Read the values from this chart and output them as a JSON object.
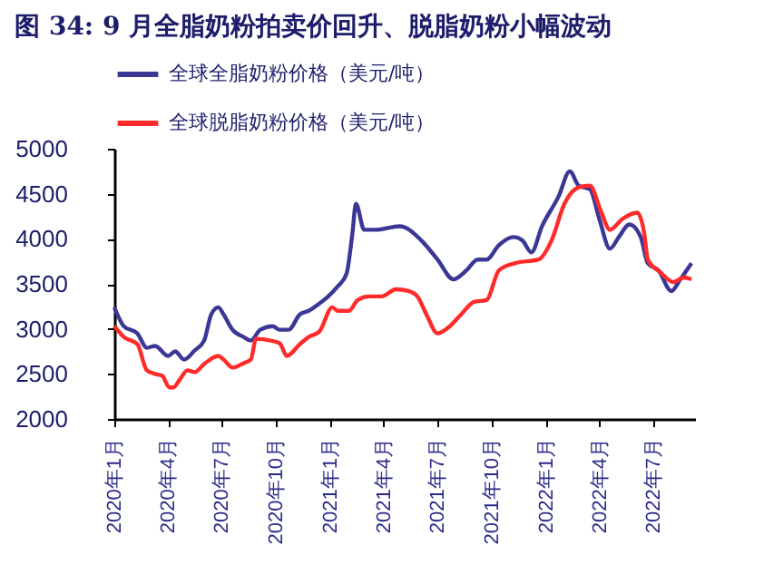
{
  "chart_data": {
    "type": "line",
    "title": "图 34: 9 月全脂奶粉拍卖价回升、脱脂奶粉小幅波动",
    "series": [
      {
        "name": "全球全脂奶粉价格（美元/吨）",
        "color": "#3b3796",
        "x": [
          "2020-01-01",
          "2020-01-17",
          "2020-02-09",
          "2020-02-25",
          "2020-03-10",
          "2020-04-01",
          "2020-04-13",
          "2020-04-28",
          "2020-05-16",
          "2020-06-01",
          "2020-06-13",
          "2020-06-25",
          "2020-07-04",
          "2020-07-19",
          "2020-08-07",
          "2020-08-19",
          "2020-09-04",
          "2020-09-25",
          "2020-10-07",
          "2020-10-22",
          "2020-11-10",
          "2020-11-25",
          "2020-12-13",
          "2020-12-28",
          "2021-01-13",
          "2021-01-28",
          "2021-02-07",
          "2021-02-13",
          "2021-02-27",
          "2021-03-19",
          "2021-04-28",
          "2021-06-04",
          "2021-07-01",
          "2021-07-28",
          "2021-08-19",
          "2021-09-07",
          "2021-09-22",
          "2021-10-13",
          "2021-11-07",
          "2021-11-22",
          "2021-12-07",
          "2021-12-25",
          "2022-01-22",
          "2022-02-10",
          "2022-02-25",
          "2022-03-16",
          "2022-04-01",
          "2022-04-19",
          "2022-05-04",
          "2022-05-22",
          "2022-06-10",
          "2022-06-22",
          "2022-07-10",
          "2022-08-01",
          "2022-08-16",
          "2022-09-04"
        ],
        "values": [
          3240,
          3030,
          2950,
          2790,
          2810,
          2700,
          2750,
          2660,
          2760,
          2870,
          3160,
          3240,
          3160,
          2990,
          2910,
          2870,
          2990,
          3030,
          2990,
          2990,
          3160,
          3200,
          3280,
          3360,
          3470,
          3610,
          4060,
          4390,
          4100,
          4100,
          4140,
          3980,
          3770,
          3550,
          3650,
          3770,
          3770,
          3930,
          4020,
          3980,
          3850,
          4140,
          4470,
          4750,
          4590,
          4550,
          4220,
          3890,
          4020,
          4160,
          4020,
          3730,
          3650,
          3420,
          3550,
          3730
        ]
      },
      {
        "name": "全球脱脂奶粉价格（美元/吨）",
        "color": "#ff2a2a",
        "x": [
          "2020-01-01",
          "2020-01-17",
          "2020-02-09",
          "2020-02-25",
          "2020-03-10",
          "2020-03-22",
          "2020-04-03",
          "2020-04-10",
          "2020-04-19",
          "2020-05-04",
          "2020-05-16",
          "2020-06-01",
          "2020-06-25",
          "2020-07-04",
          "2020-07-19",
          "2020-08-07",
          "2020-08-19",
          "2020-08-28",
          "2020-09-22",
          "2020-10-07",
          "2020-10-19",
          "2020-11-10",
          "2020-11-25",
          "2020-12-13",
          "2021-01-04",
          "2021-01-13",
          "2021-02-01",
          "2021-02-16",
          "2021-03-07",
          "2021-03-28",
          "2021-04-22",
          "2021-05-13",
          "2021-05-28",
          "2021-06-13",
          "2021-07-01",
          "2021-07-22",
          "2021-08-10",
          "2021-09-01",
          "2021-09-22",
          "2021-10-13",
          "2021-11-10",
          "2021-12-19",
          "2022-01-10",
          "2022-02-01",
          "2022-02-25",
          "2022-03-16",
          "2022-04-04",
          "2022-04-19",
          "2022-05-10",
          "2022-06-04",
          "2022-06-16",
          "2022-06-22",
          "2022-07-13",
          "2022-08-04",
          "2022-08-22",
          "2022-09-04"
        ],
        "values": [
          3030,
          2910,
          2830,
          2540,
          2500,
          2480,
          2350,
          2350,
          2420,
          2540,
          2520,
          2610,
          2700,
          2660,
          2570,
          2620,
          2660,
          2890,
          2870,
          2840,
          2700,
          2830,
          2910,
          2970,
          3240,
          3200,
          3200,
          3320,
          3360,
          3360,
          3440,
          3420,
          3360,
          3150,
          2950,
          3030,
          3160,
          3300,
          3320,
          3650,
          3730,
          3770,
          3980,
          4390,
          4570,
          4590,
          4300,
          4100,
          4220,
          4290,
          4060,
          3770,
          3630,
          3520,
          3570,
          3550
        ]
      }
    ],
    "xlim": [
      "2020-01-01",
      "2022-09-10"
    ],
    "xticks": [
      {
        "value": "2020-01-01",
        "label": "2020年1月"
      },
      {
        "value": "2020-04-01",
        "label": "2020年4月"
      },
      {
        "value": "2020-07-01",
        "label": "2020年7月"
      },
      {
        "value": "2020-10-01",
        "label": "2020年10月"
      },
      {
        "value": "2021-01-01",
        "label": "2021年1月"
      },
      {
        "value": "2021-04-01",
        "label": "2021年4月"
      },
      {
        "value": "2021-07-01",
        "label": "2021年7月"
      },
      {
        "value": "2021-10-01",
        "label": "2021年10月"
      },
      {
        "value": "2022-01-01",
        "label": "2022年1月"
      },
      {
        "value": "2022-04-01",
        "label": "2022年4月"
      },
      {
        "value": "2022-07-01",
        "label": "2022年7月"
      }
    ],
    "ylim": [
      2000,
      5000
    ],
    "yticks": [
      2000,
      2500,
      3000,
      3500,
      4000,
      4500,
      5000
    ],
    "grid": false,
    "legend": "top",
    "marker": "none",
    "line_style": "solid"
  }
}
